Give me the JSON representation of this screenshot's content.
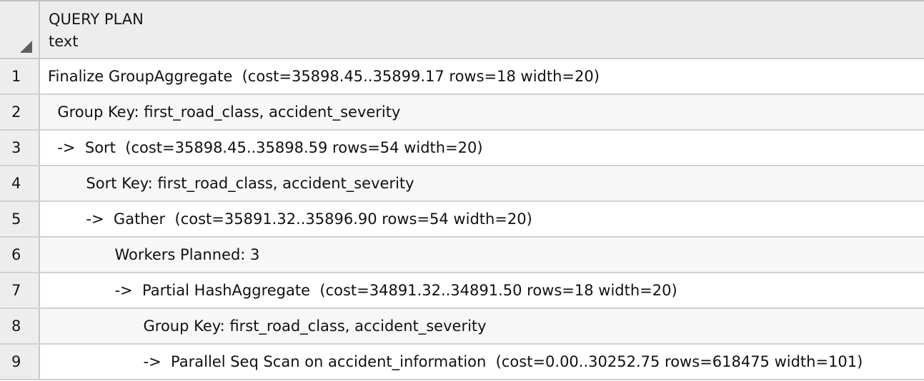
{
  "grid": {
    "columns": [
      {
        "name": "QUERY PLAN",
        "type": "text"
      }
    ],
    "rows": [
      {
        "num": "1",
        "text": "Finalize GroupAggregate  (cost=35898.45..35899.17 rows=18 width=20)"
      },
      {
        "num": "2",
        "text": "  Group Key: first_road_class, accident_severity"
      },
      {
        "num": "3",
        "text": "  ->  Sort  (cost=35898.45..35898.59 rows=54 width=20)"
      },
      {
        "num": "4",
        "text": "        Sort Key: first_road_class, accident_severity"
      },
      {
        "num": "5",
        "text": "        ->  Gather  (cost=35891.32..35896.90 rows=54 width=20)"
      },
      {
        "num": "6",
        "text": "              Workers Planned: 3"
      },
      {
        "num": "7",
        "text": "              ->  Partial HashAggregate  (cost=34891.32..34891.50 rows=18 width=20)"
      },
      {
        "num": "8",
        "text": "                    Group Key: first_road_class, accident_severity"
      },
      {
        "num": "9",
        "text": "                    ->  Parallel Seq Scan on accident_information  (cost=0.00..30252.75 rows=618475 width=101)"
      }
    ]
  }
}
